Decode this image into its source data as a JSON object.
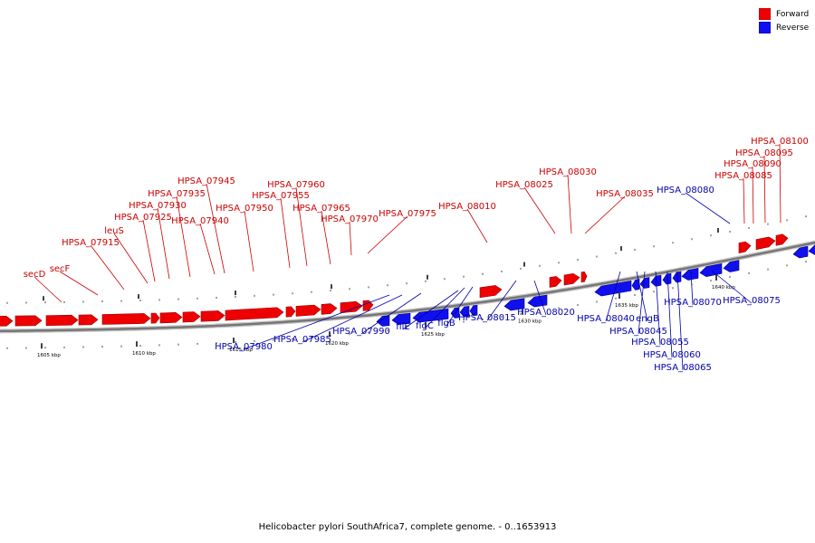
{
  "caption": "Helicobacter pylori SouthAfrica7, complete genome. - 0..1653913",
  "legend": [
    {
      "label": "Forward",
      "color": "#ee0000"
    },
    {
      "label": "Reverse",
      "color": "#1010ee"
    }
  ],
  "colors": {
    "forward": "#ee0000",
    "forward_label": "#cc0000",
    "reverse": "#1010ee",
    "reverse_label": "#0000aa",
    "backbone": "#777777"
  },
  "ticks": [
    "1605 kbp",
    "1610 kbp",
    "1615 kbp",
    "1620 kbp",
    "1625 kbp",
    "1630 kbp",
    "1635 kbp",
    "1640 kbp"
  ],
  "forward_labels": [
    "secD",
    "secF",
    "HPSA_07915",
    "leuS",
    "HPSA_07925",
    "HPSA_07930",
    "HPSA_07935",
    "HPSA_07940",
    "HPSA_07945",
    "HPSA_07950",
    "HPSA_07955",
    "HPSA_07960",
    "HPSA_07965",
    "HPSA_07970",
    "HPSA_07975",
    "HPSA_08010",
    "HPSA_08025",
    "HPSA_08030",
    "HPSA_08035",
    "HPSA_08085",
    "HPSA_08090",
    "HPSA_08095",
    "HPSA_08100"
  ],
  "reverse_labels": [
    "HPSA_07980",
    "HPSA_07985",
    "HPSA_07990",
    "fliE",
    "flgC",
    "flgB",
    "HPSA_08015",
    "HPSA_08020",
    "HPSA_08040",
    "engB",
    "HPSA_08045",
    "HPSA_08055",
    "HPSA_08060",
    "HPSA_08065",
    "HPSA_08070",
    "HPSA_08075",
    "HPSA_08080"
  ]
}
